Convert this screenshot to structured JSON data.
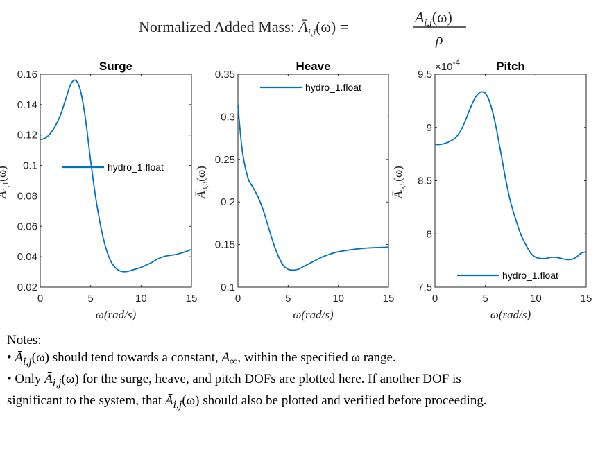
{
  "figure": {
    "title_text": "Normalized Added Mass: ",
    "title_lhs": "Ā",
    "title_lhs_sub": "i,j",
    "title_lhs_arg": "(ω) =",
    "title_num": "A",
    "title_num_sub": "i,j",
    "title_num_arg": "(ω)",
    "title_den": "ρ"
  },
  "chart_data": [
    {
      "type": "line",
      "title": "Surge",
      "xlabel": "ω(rad/s)",
      "ylabel_base": "Ā",
      "ylabel_sub": "1,1",
      "ylabel_arg": "(ω)",
      "xlim": [
        0,
        15
      ],
      "ylim": [
        0.02,
        0.16
      ],
      "xticks": [
        0,
        5,
        10,
        15
      ],
      "xtick_labels": [
        "0",
        "5",
        "10",
        "15"
      ],
      "yticks": [
        0.02,
        0.04,
        0.06,
        0.08,
        0.1,
        0.12,
        0.14,
        0.16
      ],
      "ytick_labels": [
        "0.02",
        "0.04",
        "0.06",
        "0.08",
        "0.1",
        "0.12",
        "0.14",
        "0.16"
      ],
      "exponent_label": "",
      "legend": {
        "label": "hydro_1.float",
        "position": "middle-left"
      },
      "series": [
        {
          "name": "hydro_1.float",
          "color": "#0072BD",
          "x": [
            0,
            0.5,
            1,
            1.5,
            2,
            2.5,
            3,
            3.5,
            4,
            4.5,
            5,
            5.5,
            6,
            6.5,
            7,
            7.5,
            8,
            8.5,
            9,
            9.5,
            10,
            10.5,
            11,
            11.5,
            12,
            12.5,
            13,
            13.5,
            14,
            14.5,
            15
          ],
          "y": [
            0.117,
            0.118,
            0.121,
            0.126,
            0.133,
            0.143,
            0.153,
            0.156,
            0.149,
            0.13,
            0.103,
            0.079,
            0.06,
            0.046,
            0.037,
            0.0325,
            0.0305,
            0.0302,
            0.031,
            0.032,
            0.033,
            0.0345,
            0.036,
            0.038,
            0.0395,
            0.0405,
            0.041,
            0.0415,
            0.0425,
            0.0435,
            0.0448
          ]
        }
      ]
    },
    {
      "type": "line",
      "title": "Heave",
      "xlabel": "ω(rad/s)",
      "ylabel_base": "Ā",
      "ylabel_sub": "3,3",
      "ylabel_arg": "(ω)",
      "xlim": [
        0,
        15
      ],
      "ylim": [
        0.1,
        0.35
      ],
      "xticks": [
        0,
        5,
        10,
        15
      ],
      "xtick_labels": [
        "0",
        "5",
        "10",
        "15"
      ],
      "yticks": [
        0.1,
        0.15,
        0.2,
        0.25,
        0.3,
        0.35
      ],
      "ytick_labels": [
        "0.1",
        "0.15",
        "0.2",
        "0.25",
        "0.3",
        "0.35"
      ],
      "exponent_label": "",
      "legend": {
        "label": "hydro_1.float",
        "position": "top-right"
      },
      "series": [
        {
          "name": "hydro_1.float",
          "color": "#0072BD",
          "x": [
            0,
            0.25,
            0.5,
            1,
            1.5,
            2,
            2.5,
            3,
            3.5,
            4,
            4.5,
            5,
            5.5,
            6,
            6.5,
            7,
            7.5,
            8,
            8.5,
            9,
            9.5,
            10,
            11,
            12,
            13,
            14,
            15
          ],
          "y": [
            0.313,
            0.28,
            0.255,
            0.228,
            0.217,
            0.206,
            0.191,
            0.172,
            0.153,
            0.137,
            0.126,
            0.121,
            0.12,
            0.121,
            0.124,
            0.127,
            0.13,
            0.133,
            0.136,
            0.138,
            0.14,
            0.1415,
            0.1435,
            0.145,
            0.146,
            0.1465,
            0.147
          ]
        }
      ]
    },
    {
      "type": "line",
      "title": "Pitch",
      "xlabel": "ω(rad/s)",
      "ylabel_base": "Ā",
      "ylabel_sub": "5,5",
      "ylabel_arg": "(ω)",
      "xlim": [
        0,
        15
      ],
      "ylim": [
        7.5,
        9.5
      ],
      "xticks": [
        0,
        5,
        10,
        15
      ],
      "xtick_labels": [
        "0",
        "5",
        "10",
        "15"
      ],
      "yticks": [
        7.5,
        8,
        8.5,
        9,
        9.5
      ],
      "ytick_labels": [
        "7.5",
        "8",
        "8.5",
        "9",
        "9.5"
      ],
      "exponent_label": "×10",
      "exponent_power": "-4",
      "legend": {
        "label": "hydro_1.float",
        "position": "bottom-right"
      },
      "series": [
        {
          "name": "hydro_1.float",
          "color": "#0072BD",
          "x": [
            0,
            0.5,
            1,
            1.5,
            2,
            2.5,
            3,
            3.5,
            4,
            4.5,
            5,
            5.5,
            6,
            6.5,
            7,
            7.5,
            8,
            8.5,
            9,
            9.5,
            10,
            10.5,
            11,
            11.5,
            12,
            12.5,
            13,
            13.5,
            14,
            14.5,
            15
          ],
          "y": [
            8.84,
            8.84,
            8.85,
            8.87,
            8.9,
            8.96,
            9.06,
            9.18,
            9.28,
            9.33,
            9.32,
            9.22,
            9.03,
            8.78,
            8.52,
            8.3,
            8.14,
            8.0,
            7.9,
            7.82,
            7.78,
            7.77,
            7.77,
            7.78,
            7.78,
            7.77,
            7.76,
            7.76,
            7.78,
            7.82,
            7.83
          ]
        }
      ]
    }
  ],
  "notes": {
    "heading": "Notes:",
    "line1_pre": "• ",
    "line1_sym": "Ā",
    "line1_sub": "i,j",
    "line1_arg": "(ω)",
    "line1_post": " should tend towards a constant, ",
    "line1_const": "A",
    "line1_const_sub": "∞",
    "line1_tail": ", within the specified ω range.",
    "line2_pre": "• Only ",
    "line2_sym": "Ā",
    "line2_sub": "i,j",
    "line2_arg": "(ω)",
    "line2_post": " for the surge, heave, and pitch DOFs are plotted here. If another DOF is",
    "line3_pre": "significant to the system, that ",
    "line3_sym": "Ā",
    "line3_sub": "i,j",
    "line3_arg": "(ω)",
    "line3_post": " should also be plotted and verified before proceeding."
  }
}
